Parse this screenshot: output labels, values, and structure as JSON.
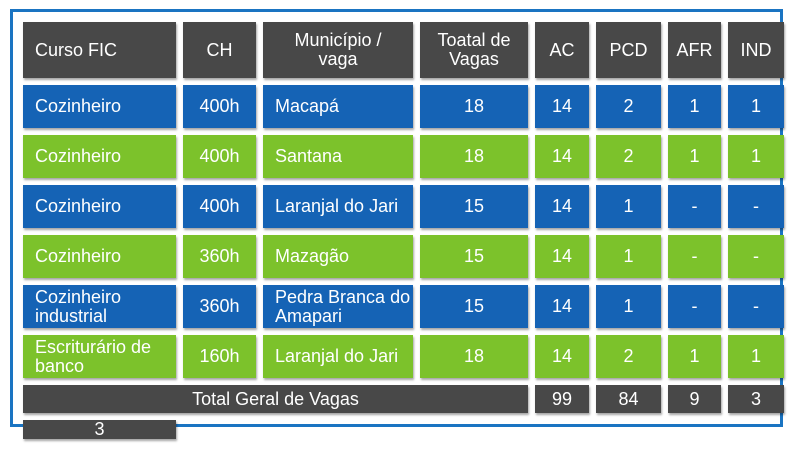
{
  "table": {
    "headers": [
      "Curso FIC",
      "CH",
      "Município / vaga",
      "Toatal de Vagas",
      "AC",
      "PCD",
      "AFR",
      "IND"
    ],
    "rows": [
      {
        "curso": "Cozinheiro",
        "ch": "400h",
        "municipio": "Macapá",
        "total": "18",
        "ac": "14",
        "pcd": "2",
        "afr": "1",
        "ind": "1",
        "color": "blue"
      },
      {
        "curso": "Cozinheiro",
        "ch": "400h",
        "municipio": "Santana",
        "total": "18",
        "ac": "14",
        "pcd": "2",
        "afr": "1",
        "ind": "1",
        "color": "green"
      },
      {
        "curso": "Cozinheiro",
        "ch": "400h",
        "municipio": "Laranjal do Jari",
        "total": "15",
        "ac": "14",
        "pcd": "1",
        "afr": "-",
        "ind": "-",
        "color": "blue"
      },
      {
        "curso": "Cozinheiro",
        "ch": "360h",
        "municipio": "Mazagão",
        "total": "15",
        "ac": "14",
        "pcd": "1",
        "afr": "-",
        "ind": "-",
        "color": "green"
      },
      {
        "curso": "Cozinheiro industrial",
        "ch": "360h",
        "municipio": "Pedra Branca do Amapari",
        "total": "15",
        "ac": "14",
        "pcd": "1",
        "afr": "-",
        "ind": "-",
        "color": "blue"
      },
      {
        "curso": "Escriturário de banco",
        "ch": "160h",
        "municipio": "Laranjal do Jari",
        "total": "18",
        "ac": "14",
        "pcd": "2",
        "afr": "1",
        "ind": "1",
        "color": "green"
      }
    ],
    "footer": {
      "label": "Total Geral de Vagas",
      "total": "99",
      "ac": "84",
      "pcd": "9",
      "afr": "3",
      "ind": "3"
    }
  },
  "colors": {
    "blue": "#1563b5",
    "green": "#7cc22b",
    "header": "#484848",
    "border": "#1a74c2"
  }
}
